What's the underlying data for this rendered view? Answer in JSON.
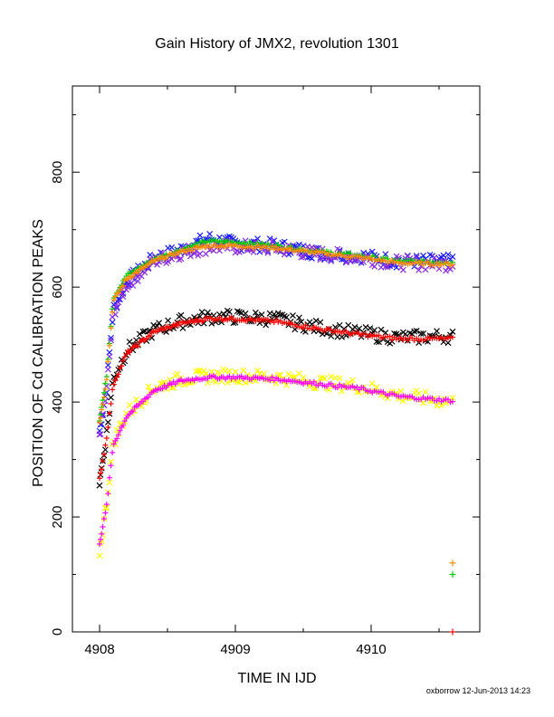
{
  "chart_data": {
    "type": "scatter",
    "title": "Gain History of JMX2, revolution 1301",
    "xlabel": "TIME IN IJD",
    "ylabel": "POSITION OF Cd CALIBRATION PEAKS",
    "xlim": [
      4907.8,
      4910.8
    ],
    "ylim": [
      0,
      950
    ],
    "x_ticks": [
      4908,
      4909,
      4910
    ],
    "y_ticks": [
      0,
      200,
      400,
      600,
      800
    ],
    "grid": false,
    "footer": "oxborrow 12-Jun-2013 14:23",
    "series": [
      {
        "color": "#1a1aff",
        "marker": "x",
        "knots": [
          [
            4908.0,
            350
          ],
          [
            4908.05,
            420
          ],
          [
            4908.1,
            560
          ],
          [
            4908.2,
            610
          ],
          [
            4908.4,
            650
          ],
          [
            4908.6,
            665
          ],
          [
            4908.8,
            685
          ],
          [
            4909.0,
            675
          ],
          [
            4909.3,
            672
          ],
          [
            4909.6,
            660
          ],
          [
            4909.9,
            655
          ],
          [
            4910.2,
            645
          ],
          [
            4910.6,
            645
          ]
        ]
      },
      {
        "color": "#8a2be2",
        "marker": "x",
        "knots": [
          [
            4908.0,
            345
          ],
          [
            4908.05,
            415
          ],
          [
            4908.1,
            555
          ],
          [
            4908.2,
            605
          ],
          [
            4908.4,
            645
          ],
          [
            4908.6,
            660
          ],
          [
            4908.8,
            670
          ],
          [
            4909.0,
            670
          ],
          [
            4909.3,
            668
          ],
          [
            4909.6,
            658
          ],
          [
            4909.9,
            652
          ],
          [
            4910.2,
            642
          ],
          [
            4910.6,
            640
          ]
        ]
      },
      {
        "color": "#00cc00",
        "marker": "+",
        "knots": [
          [
            4908.0,
            370
          ],
          [
            4908.05,
            440
          ],
          [
            4908.1,
            580
          ],
          [
            4908.2,
            620
          ],
          [
            4908.4,
            648
          ],
          [
            4908.6,
            665
          ],
          [
            4908.8,
            680
          ],
          [
            4909.0,
            678
          ],
          [
            4909.3,
            672
          ],
          [
            4909.6,
            662
          ],
          [
            4909.9,
            655
          ],
          [
            4910.2,
            645
          ],
          [
            4910.6,
            643
          ]
        ]
      },
      {
        "color": "#ff8c00",
        "marker": "+",
        "knots": [
          [
            4908.0,
            365
          ],
          [
            4908.05,
            435
          ],
          [
            4908.1,
            575
          ],
          [
            4908.2,
            615
          ],
          [
            4908.4,
            645
          ],
          [
            4908.6,
            662
          ],
          [
            4908.8,
            672
          ],
          [
            4909.0,
            672
          ],
          [
            4909.3,
            668
          ],
          [
            4909.6,
            660
          ],
          [
            4909.9,
            652
          ],
          [
            4910.2,
            642
          ],
          [
            4910.6,
            640
          ]
        ]
      },
      {
        "color": "#000000",
        "marker": "x",
        "knots": [
          [
            4908.0,
            260
          ],
          [
            4908.05,
            340
          ],
          [
            4908.1,
            440
          ],
          [
            4908.2,
            490
          ],
          [
            4908.4,
            525
          ],
          [
            4908.6,
            540
          ],
          [
            4908.8,
            548
          ],
          [
            4909.0,
            548
          ],
          [
            4909.3,
            545
          ],
          [
            4909.6,
            530
          ],
          [
            4909.9,
            520
          ],
          [
            4910.2,
            512
          ],
          [
            4910.6,
            515
          ]
        ]
      },
      {
        "color": "#ff0000",
        "marker": "+",
        "knots": [
          [
            4908.0,
            265
          ],
          [
            4908.05,
            335
          ],
          [
            4908.1,
            430
          ],
          [
            4908.2,
            485
          ],
          [
            4908.4,
            522
          ],
          [
            4908.6,
            537
          ],
          [
            4908.8,
            545
          ],
          [
            4909.0,
            545
          ],
          [
            4909.3,
            540
          ],
          [
            4909.6,
            528
          ],
          [
            4909.9,
            518
          ],
          [
            4910.2,
            510
          ],
          [
            4910.6,
            510
          ]
        ]
      },
      {
        "color": "#ffff00",
        "marker": "x",
        "knots": [
          [
            4908.0,
            140
          ],
          [
            4908.05,
            220
          ],
          [
            4908.1,
            330
          ],
          [
            4908.2,
            380
          ],
          [
            4908.4,
            425
          ],
          [
            4908.6,
            440
          ],
          [
            4908.8,
            445
          ],
          [
            4909.0,
            446
          ],
          [
            4909.3,
            443
          ],
          [
            4909.6,
            435
          ],
          [
            4909.9,
            428
          ],
          [
            4910.2,
            412
          ],
          [
            4910.6,
            400
          ]
        ]
      },
      {
        "color": "#ff00ff",
        "marker": "+",
        "knots": [
          [
            4908.0,
            155
          ],
          [
            4908.05,
            215
          ],
          [
            4908.1,
            325
          ],
          [
            4908.2,
            375
          ],
          [
            4908.4,
            420
          ],
          [
            4908.6,
            437
          ],
          [
            4908.8,
            443
          ],
          [
            4909.0,
            443
          ],
          [
            4909.3,
            440
          ],
          [
            4909.6,
            432
          ],
          [
            4909.9,
            424
          ],
          [
            4910.2,
            410
          ],
          [
            4910.6,
            402
          ]
        ]
      }
    ],
    "outliers": [
      {
        "color": "#ff8c00",
        "marker": "+",
        "x": 4910.6,
        "y": 120
      },
      {
        "color": "#00cc00",
        "marker": "+",
        "x": 4910.6,
        "y": 100
      },
      {
        "color": "#ff0000",
        "marker": "+",
        "x": 4910.6,
        "y": 0
      }
    ]
  }
}
